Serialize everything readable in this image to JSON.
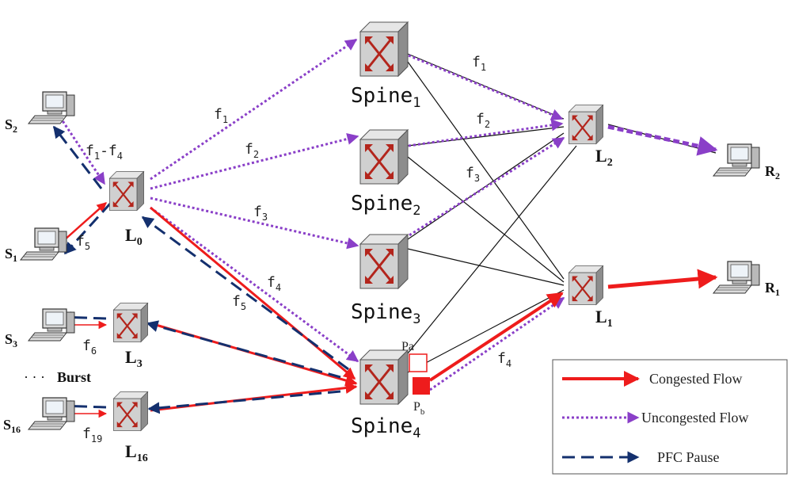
{
  "colors": {
    "congested": "#ee1c1c",
    "uncongested": "#8a3fc8",
    "pause": "#14306e",
    "link": "#111111",
    "switch_body": "#c8c8c8",
    "switch_arrow": "#b3251c"
  },
  "icons": {
    "switch": "network-switch-icon",
    "host": "computer-icon"
  },
  "nodes": {
    "S2": {
      "label": "S",
      "sub": "2"
    },
    "S1": {
      "label": "S",
      "sub": "1"
    },
    "S3": {
      "label": "S",
      "sub": "3"
    },
    "S16": {
      "label": "S",
      "sub": "16"
    },
    "R2": {
      "label": "R",
      "sub": "2"
    },
    "R1": {
      "label": "R",
      "sub": "1"
    },
    "L0": {
      "label": "L",
      "sub": "0"
    },
    "L2": {
      "label": "L",
      "sub": "2"
    },
    "L1": {
      "label": "L",
      "sub": "1"
    },
    "L3": {
      "label": "L",
      "sub": "3"
    },
    "L16": {
      "label": "L",
      "sub": "16"
    },
    "Spine1": {
      "label": "Spine",
      "sub": "1"
    },
    "Spine2": {
      "label": "Spine",
      "sub": "2"
    },
    "Spine3": {
      "label": "Spine",
      "sub": "3"
    },
    "Spine4": {
      "label": "Spine",
      "sub": "4"
    }
  },
  "flow_labels": {
    "f1_left": "f1",
    "f2_left": "f2",
    "f3_left": "f3",
    "f4_left": "f4",
    "f5_mid": "f5",
    "f1_right": "f1",
    "f2_right": "f2",
    "f3_right": "f3",
    "f4_right": "f4",
    "f1f4": "f1-f4",
    "f5_host": "f5",
    "f6": "f6",
    "f19": "f19"
  },
  "ports": {
    "pa": "Pa",
    "pb": "Pb"
  },
  "burst": {
    "dots": "· · ·",
    "label": "Burst"
  },
  "legend": [
    {
      "label": "Congested Flow",
      "style": "congested"
    },
    {
      "label": "Uncongested Flow",
      "style": "uncongested"
    },
    {
      "label": "PFC Pause",
      "style": "pause"
    }
  ]
}
